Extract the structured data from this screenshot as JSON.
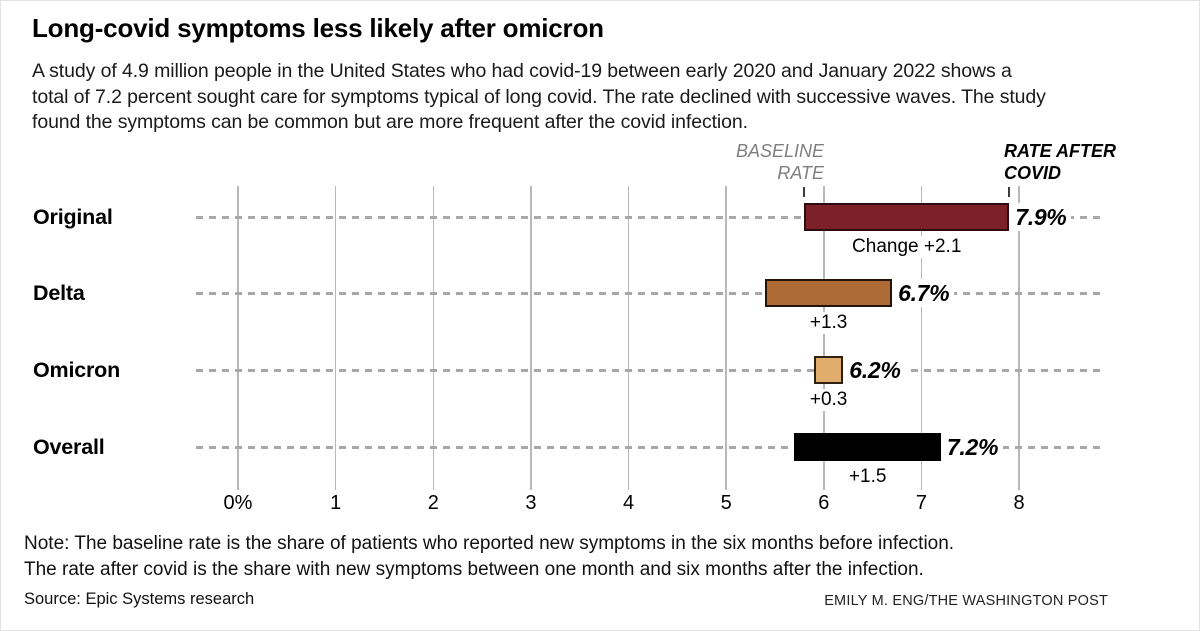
{
  "header": {
    "title": "Long-covid symptoms less likely after omicron",
    "subtitle_lines": [
      "A study of 4.9 million people in the United States who had covid-19 between early 2020 and January 2022 shows a",
      "total of 7.2 percent sought care for symptoms typical of long covid. The rate declined with successive waves. The study",
      "found the symptoms can be common but are more frequent after the covid infection."
    ]
  },
  "chart_data": {
    "type": "bar",
    "orientation": "horizontal",
    "title": "Long-covid symptoms less likely after omicron",
    "categories": [
      "Original",
      "Delta",
      "Omicron",
      "Overall"
    ],
    "series": [
      {
        "name": "Baseline rate",
        "values": [
          5.8,
          5.4,
          5.9,
          5.7
        ]
      },
      {
        "name": "Rate after covid",
        "values": [
          7.9,
          6.7,
          6.2,
          7.2
        ]
      }
    ],
    "changes": [
      2.1,
      1.3,
      0.3,
      1.5
    ],
    "bar_value_labels": [
      "7.9%",
      "6.7%",
      "6.2%",
      "7.2%"
    ],
    "change_labels": [
      "Change +2.1",
      "+1.3",
      "+0.3",
      "+1.5"
    ],
    "bar_fill_colors": [
      "#7c2127",
      "#ad6a35",
      "#e0ad6d",
      "#000000"
    ],
    "bar_border_colors": [
      "#2f0b12",
      "#241407",
      "#2e2010",
      "#000000"
    ],
    "x_ticks": [
      "0%",
      "1",
      "2",
      "3",
      "4",
      "5",
      "6",
      "7",
      "8"
    ],
    "xlim": [
      0,
      8
    ],
    "grid": "vertical-gridlines",
    "legend_position": "annotated-above-first-bar",
    "annotations": {
      "baseline_label_lines": [
        "BASELINE",
        "RATE"
      ],
      "rate_after_label_lines": [
        "RATE AFTER",
        "COVID"
      ]
    },
    "colors": {
      "gridline": "#b8b8b8",
      "dashed_row_line": "#a8a8a8",
      "baseline_label_text": "#7f7f7f"
    }
  },
  "footer": {
    "note_lines": [
      "Note: The baseline rate is the share of patients who reported new symptoms in the six months before infection.",
      "The rate after covid is the share with new symptoms between one month and six months after the infection."
    ],
    "source": "Source: Epic Systems research",
    "credit": "EMILY M. ENG/THE WASHINGTON POST"
  }
}
